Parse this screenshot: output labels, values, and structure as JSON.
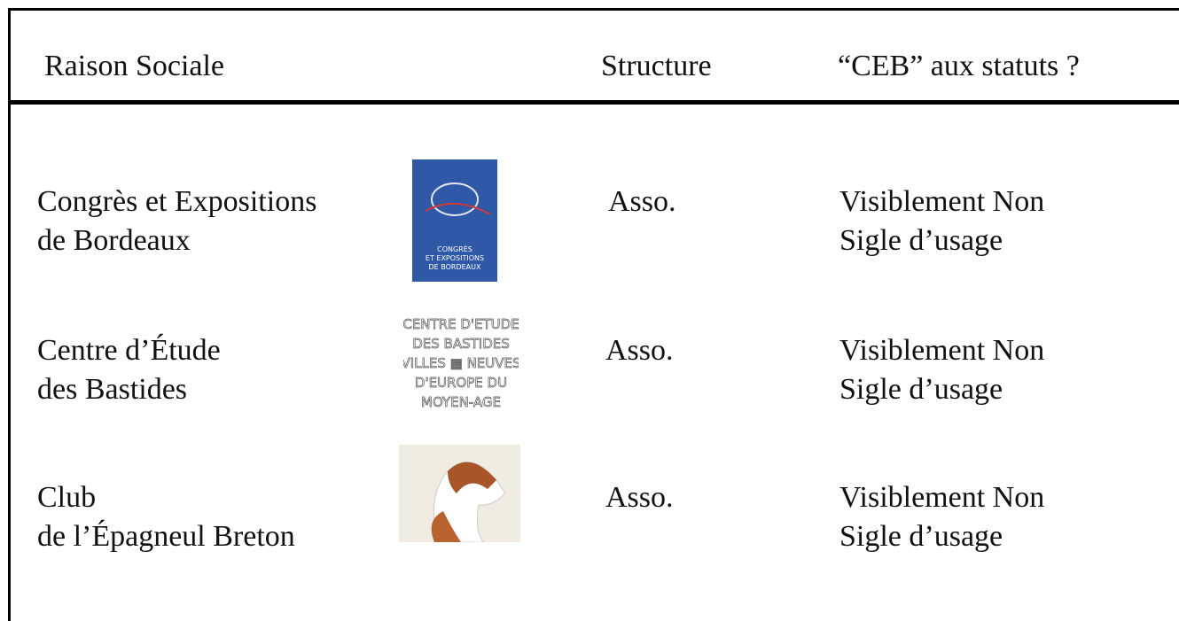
{
  "table": {
    "header": [
      "Raison Sociale",
      "Structure",
      "“CEB” aux statuts ?"
    ],
    "rows": [
      {
        "name_lines": [
          "Congrès et Expositions",
          "de Bordeaux"
        ],
        "logo_lines": [
          "CONGRÈS",
          "ET EXPOSITIONS",
          "DE BORDEAUX"
        ],
        "structure": "Asso.",
        "statuts_lines": [
          "Visiblement Non",
          "Sigle d’usage"
        ]
      },
      {
        "name_lines": [
          "Centre d’Étude",
          "des Bastides"
        ],
        "logo_lines": [
          "CENTRE D'ETUDE",
          "DES BASTIDES",
          "VILLES ▦ NEUVES",
          "D'EUROPE DU",
          "MOYEN-AGE"
        ],
        "structure": "Asso.",
        "statuts_lines": [
          "Visiblement Non",
          "Sigle d’usage"
        ]
      },
      {
        "name_lines": [
          "Club",
          "de l’Épagneul Breton"
        ],
        "structure": "Asso.",
        "statuts_lines": [
          "Visiblement Non",
          "Sigle d’usage"
        ]
      }
    ]
  }
}
